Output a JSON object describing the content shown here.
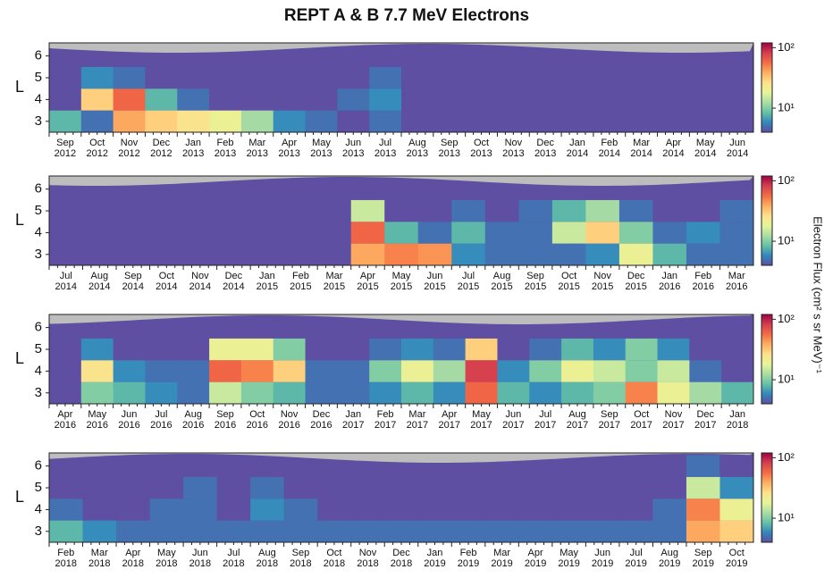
{
  "title": "REPT A & B    7.7 MeV Electrons",
  "colorbar_label": "Electron Flux (cm² s sr MeV)⁻¹",
  "colormap": [
    "#5e4fa2",
    "#3288bd",
    "#66c2a5",
    "#abdda4",
    "#e6f598",
    "#fee08b",
    "#fdae61",
    "#f46d43",
    "#d53e4f",
    "#9e0142"
  ],
  "chart_data": [
    {
      "type": "heatmap",
      "ylabel": "L",
      "ylim": [
        2.5,
        6.6
      ],
      "yticks": [
        3,
        4,
        5,
        6
      ],
      "rows": [
        3,
        4,
        5,
        6
      ],
      "clim": [
        4,
        120
      ],
      "cticks": [
        {
          "value": 10,
          "label": "10¹"
        },
        {
          "value": 100,
          "label": "10²"
        }
      ],
      "months": [
        "Sep",
        "Oct",
        "Nov",
        "Dec",
        "Jan",
        "Feb",
        "Mar",
        "Apr",
        "May",
        "Jun",
        "Jul",
        "Aug",
        "Sep",
        "Oct",
        "Nov",
        "Dec",
        "Jan",
        "Feb",
        "Mar",
        "Apr",
        "May",
        "Jun"
      ],
      "years": [
        "2012",
        "2012",
        "2012",
        "2012",
        "2013",
        "2013",
        "2013",
        "2013",
        "2013",
        "2013",
        "2013",
        "2013",
        "2013",
        "2013",
        "2013",
        "2013",
        "2014",
        "2014",
        "2014",
        "2014",
        "2014",
        "2014"
      ],
      "values": [
        [
          8,
          5,
          40,
          30,
          25,
          20,
          12,
          6,
          5,
          4,
          5,
          4,
          4,
          4,
          4,
          4,
          4,
          4,
          4,
          4,
          4,
          4
        ],
        [
          4,
          30,
          60,
          8,
          5,
          4,
          4,
          4,
          4,
          5,
          6,
          4,
          4,
          4,
          4,
          4,
          4,
          4,
          4,
          4,
          4,
          4
        ],
        [
          4,
          6,
          5,
          4,
          4,
          4,
          4,
          4,
          4,
          4,
          5,
          4,
          4,
          4,
          4,
          4,
          4,
          4,
          4,
          4,
          4,
          4
        ],
        [
          4,
          4,
          4,
          4,
          4,
          4,
          4,
          4,
          4,
          4,
          4,
          4,
          4,
          4,
          4,
          4,
          4,
          4,
          4,
          4,
          4,
          4
        ]
      ]
    },
    {
      "type": "heatmap",
      "ylabel": "L",
      "ylim": [
        2.5,
        6.6
      ],
      "yticks": [
        3,
        4,
        5,
        6
      ],
      "rows": [
        3,
        4,
        5,
        6
      ],
      "clim": [
        4,
        120
      ],
      "cticks": [
        {
          "value": 10,
          "label": "10¹"
        },
        {
          "value": 100,
          "label": "10²"
        }
      ],
      "months": [
        "Jul",
        "Aug",
        "Sep",
        "Oct",
        "Nov",
        "Dec",
        "Jan",
        "Feb",
        "Mar",
        "Apr",
        "May",
        "Jun",
        "Jul",
        "Aug",
        "Sep",
        "Oct",
        "Nov",
        "Dec",
        "Jan",
        "Feb",
        "Mar"
      ],
      "years": [
        "2014",
        "2014",
        "2014",
        "2014",
        "2014",
        "2014",
        "2015",
        "2015",
        "2015",
        "2015",
        "2015",
        "2015",
        "2015",
        "2015",
        "2015",
        "2015",
        "2015",
        "2015",
        "2016",
        "2016",
        "2016"
      ],
      "values": [
        [
          4,
          4,
          4,
          4,
          4,
          4,
          4,
          4,
          4,
          40,
          50,
          45,
          6,
          5,
          5,
          5,
          6,
          20,
          8,
          5,
          5
        ],
        [
          4,
          4,
          4,
          4,
          4,
          4,
          4,
          4,
          4,
          60,
          8,
          5,
          8,
          5,
          5,
          15,
          30,
          10,
          5,
          6,
          5
        ],
        [
          4,
          4,
          4,
          4,
          4,
          4,
          4,
          4,
          4,
          15,
          4,
          4,
          5,
          4,
          5,
          8,
          12,
          5,
          4,
          4,
          5
        ],
        [
          4,
          4,
          4,
          4,
          4,
          4,
          4,
          4,
          4,
          4,
          4,
          4,
          4,
          4,
          4,
          4,
          4,
          4,
          4,
          4,
          4
        ]
      ]
    },
    {
      "type": "heatmap",
      "ylabel": "L",
      "ylim": [
        2.5,
        6.6
      ],
      "yticks": [
        3,
        4,
        5,
        6
      ],
      "rows": [
        3,
        4,
        5,
        6
      ],
      "clim": [
        4,
        120
      ],
      "cticks": [
        {
          "value": 10,
          "label": "10¹"
        },
        {
          "value": 100,
          "label": "10²"
        }
      ],
      "months": [
        "Apr",
        "May",
        "Jun",
        "Jul",
        "Aug",
        "Sep",
        "Oct",
        "Nov",
        "Dec",
        "Jan",
        "Feb",
        "Mar",
        "Apr",
        "May",
        "Jun",
        "Jul",
        "Aug",
        "Sep",
        "Oct",
        "Nov",
        "Dec",
        "Jan"
      ],
      "years": [
        "2016",
        "2016",
        "2016",
        "2016",
        "2016",
        "2016",
        "2016",
        "2016",
        "2016",
        "2017",
        "2017",
        "2017",
        "2017",
        "2017",
        "2017",
        "2017",
        "2017",
        "2017",
        "2017",
        "2017",
        "2017",
        "2018"
      ],
      "values": [
        [
          4,
          10,
          8,
          6,
          5,
          15,
          10,
          8,
          5,
          5,
          6,
          8,
          6,
          60,
          8,
          6,
          8,
          10,
          50,
          20,
          12,
          8
        ],
        [
          4,
          25,
          6,
          5,
          5,
          60,
          50,
          30,
          5,
          5,
          10,
          20,
          12,
          80,
          6,
          10,
          20,
          15,
          10,
          15,
          5,
          4
        ],
        [
          4,
          6,
          4,
          4,
          4,
          20,
          20,
          10,
          4,
          4,
          5,
          6,
          5,
          30,
          4,
          5,
          8,
          6,
          10,
          6,
          4,
          4
        ],
        [
          4,
          4,
          4,
          4,
          4,
          4,
          4,
          4,
          4,
          4,
          4,
          4,
          4,
          4,
          4,
          4,
          4,
          4,
          4,
          4,
          4,
          4
        ]
      ]
    },
    {
      "type": "heatmap",
      "ylabel": "L",
      "ylim": [
        2.5,
        6.6
      ],
      "yticks": [
        3,
        4,
        5,
        6
      ],
      "rows": [
        3,
        4,
        5,
        6
      ],
      "clim": [
        4,
        120
      ],
      "cticks": [
        {
          "value": 10,
          "label": "10¹"
        },
        {
          "value": 100,
          "label": "10²"
        }
      ],
      "months": [
        "Feb",
        "Mar",
        "Apr",
        "May",
        "Jun",
        "Jul",
        "Aug",
        "Sep",
        "Oct",
        "Nov",
        "Dec",
        "Jan",
        "Feb",
        "Mar",
        "Apr",
        "May",
        "Jun",
        "Jul",
        "Aug",
        "Sep",
        "Oct"
      ],
      "years": [
        "2018",
        "2018",
        "2018",
        "2018",
        "2018",
        "2018",
        "2018",
        "2018",
        "2018",
        "2018",
        "2018",
        "2019",
        "2019",
        "2019",
        "2019",
        "2019",
        "2019",
        "2019",
        "2019",
        "2019",
        "2019"
      ],
      "values": [
        [
          8,
          6,
          5,
          5,
          5,
          5,
          5,
          5,
          5,
          5,
          5,
          5,
          5,
          5,
          5,
          5,
          5,
          5,
          5,
          40,
          30
        ],
        [
          5,
          4,
          4,
          5,
          5,
          4,
          6,
          5,
          4,
          4,
          4,
          4,
          4,
          4,
          4,
          4,
          4,
          4,
          5,
          50,
          20
        ],
        [
          4,
          4,
          4,
          4,
          5,
          4,
          5,
          4,
          4,
          4,
          4,
          4,
          4,
          4,
          4,
          4,
          4,
          4,
          4,
          15,
          6
        ],
        [
          4,
          4,
          4,
          4,
          4,
          4,
          4,
          4,
          4,
          4,
          4,
          4,
          4,
          4,
          4,
          4,
          4,
          4,
          4,
          5,
          4
        ]
      ]
    }
  ]
}
